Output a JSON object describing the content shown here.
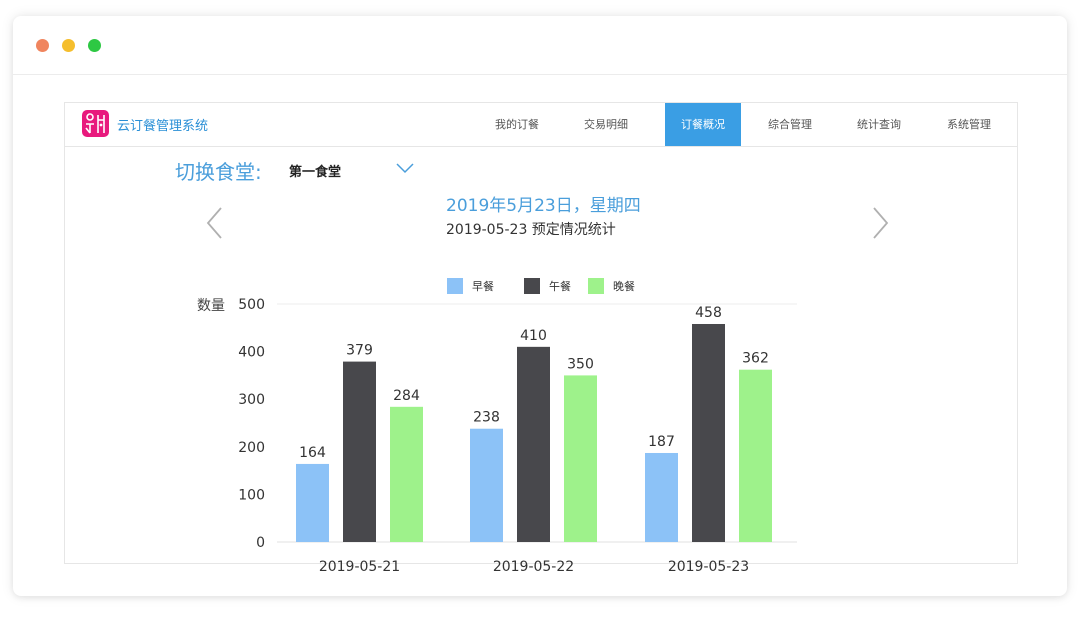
{
  "window": {
    "controls": [
      "close",
      "minimize",
      "maximize"
    ],
    "colors": {
      "close": "#f0855e",
      "minimize": "#f5be2d",
      "maximize": "#2dc843"
    }
  },
  "header": {
    "logo_icon": "canteen-logo-icon",
    "logo_color": "#e8197d",
    "app_title": "云订餐管理系统",
    "nav": [
      {
        "label": "我的订餐",
        "active": false
      },
      {
        "label": "交易明细",
        "active": false
      },
      {
        "label": "订餐概况",
        "active": true
      },
      {
        "label": "综合管理",
        "active": false
      },
      {
        "label": "统计查询",
        "active": false
      },
      {
        "label": "系统管理",
        "active": false
      }
    ],
    "active_color": "#3a9ee4"
  },
  "canteen": {
    "label": "切换食堂:",
    "value": "第一食堂",
    "dropdown_icon": "chevron-down-icon"
  },
  "date": {
    "display": "2019年5月23日，星期四",
    "subtitle": "2019-05-23 预定情况统计",
    "prev_icon": "chevron-left-icon",
    "next_icon": "chevron-right-icon"
  },
  "chart_data": {
    "type": "bar",
    "categories": [
      "2019-05-21",
      "2019-05-22",
      "2019-05-23"
    ],
    "series": [
      {
        "name": "早餐",
        "values": [
          164,
          238,
          187
        ],
        "color": "#8cc2f7"
      },
      {
        "name": "午餐",
        "values": [
          379,
          410,
          458
        ],
        "color": "#48484c"
      },
      {
        "name": "晚餐",
        "values": [
          284,
          350,
          362
        ],
        "color": "#9ef28b"
      }
    ],
    "ylabel": "数量",
    "yticks": [
      0,
      100,
      200,
      300,
      400,
      500
    ],
    "ylim": [
      0,
      500
    ],
    "legend": "top-center",
    "grid": false,
    "data_labels": true
  }
}
